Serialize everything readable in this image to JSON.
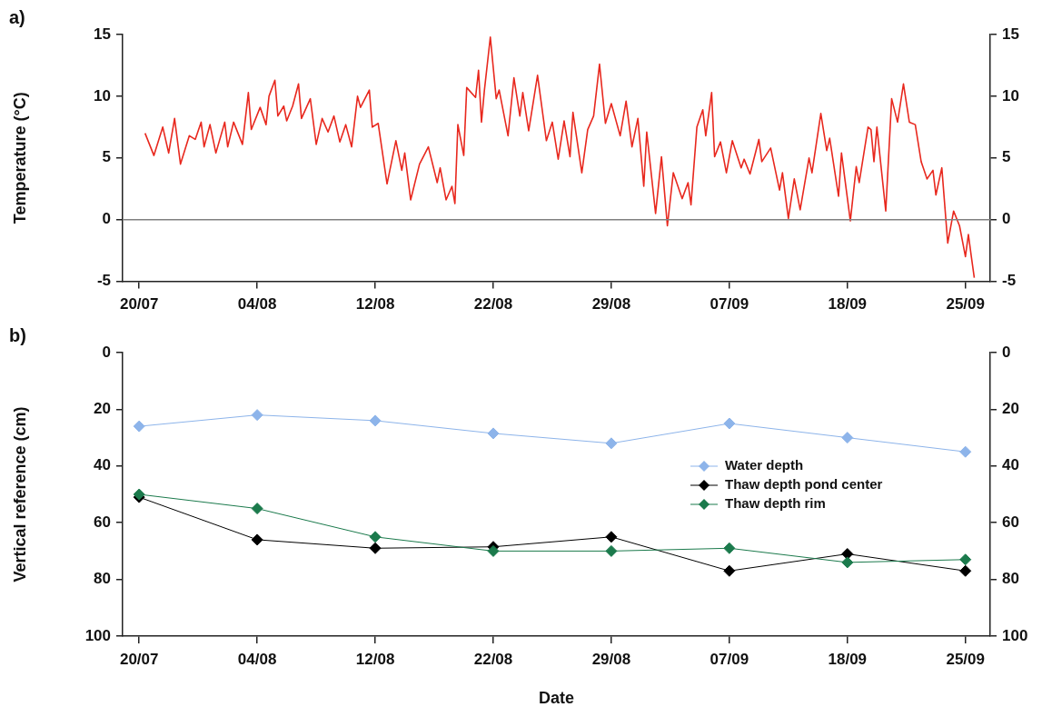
{
  "chart_data": [
    {
      "type": "line",
      "annotations": [
        "a)"
      ],
      "ylabel": "Temperature (°C)",
      "categories": [
        "20/07",
        null,
        null,
        null,
        null,
        null,
        null,
        null,
        null,
        null,
        null,
        null,
        null,
        null,
        null,
        null,
        null,
        null,
        null,
        null,
        null,
        null,
        null,
        null,
        null,
        null,
        null,
        null,
        null,
        null,
        null,
        null,
        null,
        null,
        null,
        null,
        null,
        null,
        null,
        null,
        "04/08",
        null,
        null,
        null,
        null,
        null,
        null,
        null,
        null,
        null,
        null,
        null,
        null,
        null,
        null,
        null,
        null,
        null,
        null,
        null,
        null,
        null,
        null,
        null,
        null,
        null,
        null,
        null,
        null,
        null,
        null,
        null,
        null,
        null,
        null,
        null,
        null,
        null,
        null,
        null,
        "12/08",
        null,
        null,
        null,
        null,
        null,
        null,
        null,
        null,
        null,
        null,
        null,
        null,
        null,
        null,
        null,
        null,
        null,
        null,
        null,
        null,
        null,
        null,
        null,
        null,
        null,
        null,
        null,
        null,
        null,
        null,
        null,
        null,
        null,
        null,
        null,
        null,
        null,
        null,
        null,
        "22/08",
        null,
        null,
        null,
        null,
        null,
        null,
        null,
        null,
        null,
        null,
        null,
        null,
        null,
        null,
        null,
        null,
        null,
        null,
        null,
        null,
        null,
        null,
        null,
        null,
        null,
        null,
        null,
        null,
        null,
        null,
        null,
        null,
        null,
        null,
        null,
        null,
        null,
        null,
        null,
        "29/08",
        null,
        null,
        null,
        null,
        null,
        null,
        null,
        null,
        null,
        null,
        null,
        null,
        null,
        null,
        null,
        null,
        null,
        null,
        null,
        null,
        null,
        null,
        null,
        null,
        null,
        null,
        null,
        null,
        null,
        null,
        null,
        null,
        null,
        null,
        null,
        null,
        null,
        null,
        null,
        "07/09",
        null,
        null,
        null,
        null,
        null,
        null,
        null,
        null,
        null,
        null,
        null,
        null,
        null,
        null,
        null,
        null,
        null,
        null,
        null,
        null,
        null,
        null,
        null,
        null,
        null,
        null,
        null,
        null,
        null,
        null,
        null,
        null,
        null,
        null,
        null,
        null,
        null,
        null,
        null,
        "18/09",
        null,
        null,
        null,
        null,
        null,
        null,
        null,
        null,
        null,
        null,
        null,
        null,
        null,
        null,
        null,
        null,
        null,
        null,
        null,
        null,
        null,
        null,
        null,
        null,
        null,
        null,
        null,
        null,
        null,
        null,
        null,
        null,
        null,
        null,
        null,
        null,
        null,
        null,
        null,
        "25/09",
        null,
        null,
        null
      ],
      "series": [
        {
          "color": "#e8281e",
          "values": [
            null,
            null,
            7.0,
            null,
            null,
            5.2,
            null,
            null,
            7.5,
            null,
            5.4,
            null,
            8.2,
            null,
            4.5,
            null,
            null,
            6.8,
            null,
            6.5,
            null,
            7.9,
            5.9,
            null,
            7.7,
            null,
            5.4,
            null,
            null,
            7.9,
            5.9,
            null,
            7.9,
            null,
            null,
            6.1,
            null,
            10.3,
            7.3,
            null,
            null,
            9.1,
            null,
            7.7,
            10.0,
            null,
            11.3,
            8.4,
            null,
            9.2,
            8.0,
            null,
            9.2,
            null,
            11.0,
            8.2,
            null,
            null,
            9.8,
            null,
            6.1,
            null,
            8.2,
            null,
            7.1,
            null,
            8.4,
            null,
            6.3,
            null,
            7.7,
            null,
            5.9,
            null,
            10.0,
            9.1,
            null,
            null,
            10.5,
            7.5,
            null,
            7.8,
            null,
            null,
            2.9,
            null,
            null,
            6.4,
            null,
            4.0,
            5.4,
            null,
            1.6,
            null,
            null,
            4.5,
            null,
            null,
            5.9,
            null,
            null,
            3.0,
            4.2,
            null,
            1.6,
            null,
            2.7,
            1.3,
            7.7,
            null,
            5.2,
            10.7,
            null,
            null,
            9.9,
            12.1,
            7.9,
            10.5,
            null,
            14.8,
            null,
            9.8,
            10.5,
            null,
            null,
            6.8,
            null,
            11.5,
            null,
            8.4,
            10.3,
            null,
            7.2,
            null,
            null,
            11.7,
            null,
            null,
            6.4,
            null,
            7.9,
            null,
            4.9,
            null,
            8.0,
            null,
            5.1,
            8.7,
            null,
            null,
            3.8,
            null,
            7.3,
            null,
            8.4,
            null,
            12.6,
            null,
            7.8,
            null,
            9.4,
            null,
            null,
            6.8,
            null,
            9.6,
            null,
            5.9,
            null,
            8.2,
            null,
            2.7,
            7.1,
            null,
            null,
            0.5,
            null,
            5.1,
            null,
            -0.5,
            null,
            3.8,
            null,
            null,
            1.7,
            null,
            3.0,
            1.2,
            null,
            7.5,
            null,
            8.9,
            6.8,
            null,
            10.3,
            5.1,
            null,
            6.3,
            null,
            3.8,
            null,
            6.4,
            null,
            null,
            4.2,
            4.9,
            null,
            3.7,
            null,
            null,
            6.5,
            4.7,
            null,
            null,
            5.8,
            null,
            null,
            2.4,
            3.8,
            null,
            0.1,
            null,
            3.3,
            null,
            0.8,
            null,
            null,
            5.0,
            3.8,
            null,
            null,
            8.6,
            null,
            5.6,
            6.6,
            null,
            null,
            1.9,
            5.4,
            null,
            null,
            -0.1,
            null,
            4.3,
            3.0,
            null,
            null,
            7.5,
            7.3,
            4.7,
            7.5,
            null,
            null,
            0.7,
            null,
            9.8,
            null,
            7.9,
            null,
            11.0,
            null,
            7.9,
            null,
            7.7,
            null,
            4.7,
            null,
            3.3,
            null,
            4.0,
            2.0,
            null,
            4.2,
            null,
            -1.9,
            null,
            0.7,
            null,
            -0.5,
            null,
            -3.0,
            -1.2,
            -3.0,
            -4.7
          ]
        }
      ],
      "ylim": [
        -5,
        15
      ],
      "yticks": [
        -5,
        0,
        5,
        10,
        15
      ],
      "y2lim": [
        -5,
        15
      ],
      "y2ticks": [
        -5,
        0,
        5,
        10,
        15
      ],
      "ref_lines": [
        {
          "axis": "y",
          "value": 0,
          "color": "#808080"
        }
      ],
      "marker": "none",
      "line_style": "solid",
      "legend": false
    },
    {
      "type": "line",
      "annotations": [
        "b)"
      ],
      "xlabel": "Date",
      "ylabel": "Vertical reference (cm)",
      "categories": [
        "20/07",
        "04/08",
        "12/08",
        "22/08",
        "29/08",
        "07/09",
        "18/09",
        "25/09"
      ],
      "series": [
        {
          "name": "Water depth",
          "color": "#8db4ea",
          "values": [
            26,
            22,
            24,
            28.5,
            32,
            25,
            30,
            35
          ]
        },
        {
          "name": "Thaw depth pond center",
          "color": "#000000",
          "values": [
            51,
            66,
            69,
            68.5,
            65,
            77,
            71,
            77
          ]
        },
        {
          "name": "Thaw depth rim",
          "color": "#1b7a4c",
          "values": [
            50,
            55,
            65,
            70,
            70,
            69,
            74,
            73
          ]
        }
      ],
      "ylim": [
        100,
        0
      ],
      "yticks": [
        0,
        20,
        40,
        60,
        80,
        100
      ],
      "y2lim": [
        100,
        0
      ],
      "y2ticks": [
        0,
        20,
        40,
        60,
        80,
        100
      ],
      "marker": "diamond",
      "line_style": "solid",
      "legend": "right"
    }
  ]
}
